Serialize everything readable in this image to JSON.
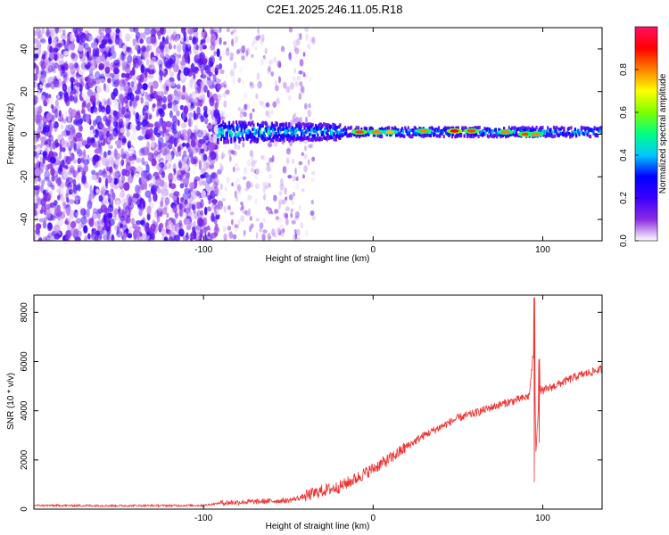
{
  "title": "C2E1.2025.246.11.05.R18",
  "chart_data": [
    {
      "type": "heatmap",
      "name": "spectrogram",
      "xlabel": "Height of straight line (km)",
      "ylabel": "Frequency (Hz)",
      "xlim": [
        -200,
        135
      ],
      "ylim": [
        -50,
        50
      ],
      "x_ticks": [
        -100,
        0,
        100
      ],
      "x_tick_labels": [
        "-100",
        "0",
        "100"
      ],
      "y_ticks": [
        -40,
        -20,
        0,
        20,
        40
      ],
      "y_tick_labels": [
        "-40",
        "-20",
        "0",
        "20",
        "40"
      ],
      "colorbar": {
        "label": "Normalized spectral amplitude",
        "range": [
          0,
          1
        ],
        "ticks": [
          0.0,
          0.2,
          0.4,
          0.6,
          0.8
        ],
        "tick_labels": [
          "0.0",
          "0.2",
          "0.4",
          "0.6",
          "0.8"
        ],
        "colormap": [
          "#ffffff",
          "#8a2be2",
          "#3b00ff",
          "#0000ff",
          "#00c8ff",
          "#00ff80",
          "#7dff00",
          "#ffff00",
          "#ff8000",
          "#ff0000",
          "#ff1060"
        ]
      },
      "noise_region_x": [
        -200,
        -90
      ],
      "sparse_region_x": [
        -90,
        -35
      ],
      "band_center_hz": 1,
      "hot_spots": [
        {
          "x": -8,
          "f": 1,
          "amp": 0.85
        },
        {
          "x": 2,
          "f": 1,
          "amp": 0.8
        },
        {
          "x": 10,
          "f": 1,
          "amp": 0.75
        },
        {
          "x": 30,
          "f": 1.5,
          "amp": 0.8
        },
        {
          "x": 48,
          "f": 1.5,
          "amp": 0.9
        },
        {
          "x": 58,
          "f": 1.5,
          "amp": 0.85
        },
        {
          "x": 78,
          "f": 1,
          "amp": 0.8
        },
        {
          "x": 90,
          "f": 0,
          "amp": 0.85
        },
        {
          "x": 96,
          "f": 0,
          "amp": 0.8
        }
      ]
    },
    {
      "type": "line",
      "name": "snr",
      "xlabel": "Height of straight line (km)",
      "ylabel": "SNR (10 * v/v)",
      "xlim": [
        -200,
        135
      ],
      "ylim": [
        0,
        8700
      ],
      "x_ticks": [
        -100,
        0,
        100
      ],
      "x_tick_labels": [
        "-100",
        "0",
        "100"
      ],
      "y_ticks": [
        0,
        2000,
        4000,
        6000,
        8000
      ],
      "y_tick_labels": [
        "0",
        "2000",
        "4000",
        "6000",
        "8000"
      ],
      "color": "#ee3333",
      "series": [
        {
          "name": "SNR",
          "x": [
            -200,
            -150,
            -100,
            -90,
            -80,
            -70,
            -60,
            -50,
            -40,
            -30,
            -20,
            -10,
            0,
            10,
            20,
            30,
            40,
            50,
            60,
            70,
            80,
            88,
            92,
            95,
            96,
            98,
            100,
            110,
            120,
            135
          ],
          "values": [
            150,
            140,
            150,
            250,
            280,
            300,
            330,
            350,
            520,
            750,
            900,
            1250,
            1650,
            2050,
            2550,
            3000,
            3350,
            3700,
            3900,
            4150,
            4350,
            4500,
            4600,
            6700,
            2400,
            4900,
            4800,
            5100,
            5400,
            5700
          ],
          "spikes": [
            {
              "x": 95,
              "low": 1100,
              "high": 8600
            },
            {
              "x": 98,
              "low": 2700,
              "high": 6100
            }
          ]
        }
      ]
    }
  ]
}
